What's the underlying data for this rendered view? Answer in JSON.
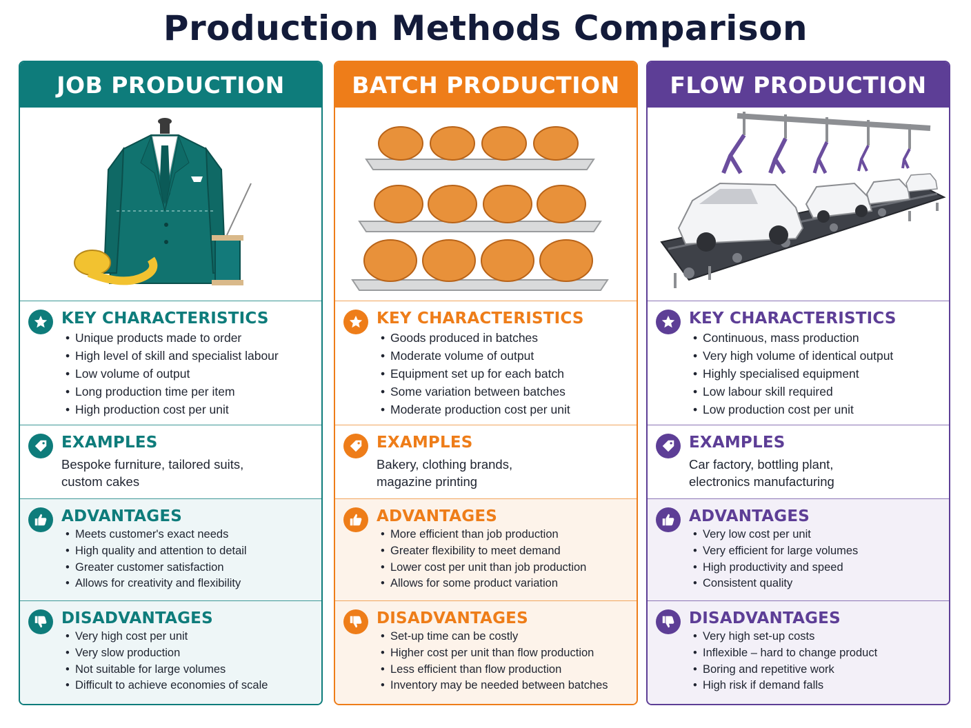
{
  "title": "Production Methods Comparison",
  "section_titles": {
    "key": "KEY CHARACTERISTICS",
    "examples": "EXAMPLES",
    "advantages": "ADVANTAGES",
    "disadvantages": "DISADVANTAGES"
  },
  "columns": [
    {
      "heading": "JOB PRODUCTION",
      "color": "#0e7c7b",
      "illustration": "tailored-suit-on-mannequin",
      "key": [
        "Unique products made to order",
        "High level of skill and specialist labour",
        "Low volume of output",
        "Long production time per item",
        "High production cost per unit"
      ],
      "examples_line1": "Bespoke furniture, tailored suits,",
      "examples_line2": "custom cakes",
      "advantages": [
        "Meets customer's exact needs",
        "High quality and attention to detail",
        "Greater customer satisfaction",
        "Allows for creativity and flexibility"
      ],
      "disadvantages": [
        "Very high cost per unit",
        "Very slow production",
        "Not suitable for large volumes",
        "Difficult to achieve economies of scale"
      ]
    },
    {
      "heading": "BATCH PRODUCTION",
      "color": "#ee7d19",
      "illustration": "bread-rolls-on-trays",
      "key": [
        "Goods produced in batches",
        "Moderate volume of output",
        "Equipment set up for each batch",
        "Some variation between batches",
        "Moderate production cost per unit"
      ],
      "examples_line1": "Bakery, clothing brands,",
      "examples_line2": "magazine printing",
      "advantages": [
        "More efficient than job production",
        "Greater flexibility to meet demand",
        "Lower cost per unit than job production",
        "Allows for some product variation"
      ],
      "disadvantages": [
        "Set-up time can be costly",
        "Higher cost per unit than flow production",
        "Less efficient than flow production",
        "Inventory may be needed between batches"
      ]
    },
    {
      "heading": "FLOW PRODUCTION",
      "color": "#5d3e96",
      "illustration": "car-assembly-line",
      "key": [
        "Continuous, mass production",
        "Very high volume of identical output",
        "Highly specialised equipment",
        "Low labour skill required",
        "Low production cost per unit"
      ],
      "examples_line1": "Car factory, bottling plant,",
      "examples_line2": "electronics manufacturing",
      "advantages": [
        "Very low cost per unit",
        "Very efficient for large volumes",
        "High productivity and speed",
        "Consistent quality"
      ],
      "disadvantages": [
        "Very high set-up costs",
        "Inflexible – hard to change product",
        "Boring and repetitive work",
        "High risk if demand falls"
      ]
    }
  ],
  "icons": {
    "key": "star-icon",
    "examples": "tag-icon",
    "advantages": "thumbs-up-icon",
    "disadvantages": "thumbs-down-icon"
  }
}
